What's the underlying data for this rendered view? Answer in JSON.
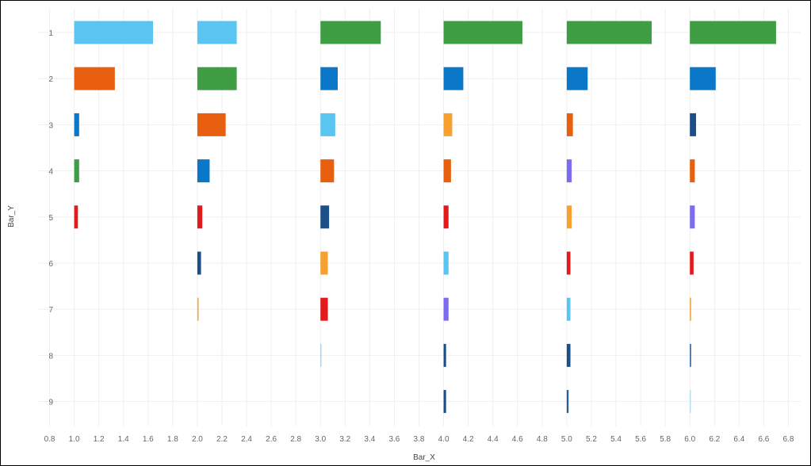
{
  "chart_data": {
    "type": "bar",
    "orientation": "horizontal",
    "layout": "small multiples: one group of horizontal bars per integer start value on Bar_X",
    "xlabel": "Bar_X",
    "ylabel": "Bar_Y",
    "xlim": [
      0.7,
      6.9
    ],
    "x_ticks": [
      "0.8",
      "1.0",
      "1.2",
      "1.4",
      "1.6",
      "1.8",
      "2.0",
      "2.2",
      "2.4",
      "2.6",
      "2.8",
      "3.0",
      "3.2",
      "3.4",
      "3.6",
      "3.8",
      "4.0",
      "4.2",
      "4.4",
      "4.6",
      "4.8",
      "5.0",
      "5.2",
      "5.4",
      "5.6",
      "5.8",
      "6.0",
      "6.2",
      "6.4",
      "6.6",
      "6.8"
    ],
    "y_categories": [
      "1",
      "2",
      "3",
      "4",
      "5",
      "6",
      "7",
      "8",
      "9"
    ],
    "grid": true,
    "legend": "none",
    "bars": [
      {
        "group": 1,
        "y": "1",
        "x0": 1.0,
        "x1": 1.64,
        "color": "#5bc5f2"
      },
      {
        "group": 1,
        "y": "2",
        "x0": 1.0,
        "x1": 1.33,
        "color": "#e8600f"
      },
      {
        "group": 1,
        "y": "3",
        "x0": 1.0,
        "x1": 1.04,
        "color": "#0a77c8"
      },
      {
        "group": 1,
        "y": "4",
        "x0": 1.0,
        "x1": 1.04,
        "color": "#3f9e44"
      },
      {
        "group": 1,
        "y": "5",
        "x0": 1.0,
        "x1": 1.03,
        "color": "#e31a1c"
      },
      {
        "group": 2,
        "y": "1",
        "x0": 2.0,
        "x1": 2.32,
        "color": "#5bc5f2"
      },
      {
        "group": 2,
        "y": "2",
        "x0": 2.0,
        "x1": 2.32,
        "color": "#3f9e44"
      },
      {
        "group": 2,
        "y": "3",
        "x0": 2.0,
        "x1": 2.23,
        "color": "#e8600f"
      },
      {
        "group": 2,
        "y": "4",
        "x0": 2.0,
        "x1": 2.1,
        "color": "#0a77c8"
      },
      {
        "group": 2,
        "y": "5",
        "x0": 2.0,
        "x1": 2.04,
        "color": "#e31a1c"
      },
      {
        "group": 2,
        "y": "6",
        "x0": 2.0,
        "x1": 2.03,
        "color": "#1c4e87"
      },
      {
        "group": 2,
        "y": "7",
        "x0": 2.0,
        "x1": 2.01,
        "color": "#f7a130"
      },
      {
        "group": 3,
        "y": "1",
        "x0": 3.0,
        "x1": 3.49,
        "color": "#3f9e44"
      },
      {
        "group": 3,
        "y": "2",
        "x0": 3.0,
        "x1": 3.14,
        "color": "#0a77c8"
      },
      {
        "group": 3,
        "y": "3",
        "x0": 3.0,
        "x1": 3.12,
        "color": "#5bc5f2"
      },
      {
        "group": 3,
        "y": "4",
        "x0": 3.0,
        "x1": 3.11,
        "color": "#e8600f"
      },
      {
        "group": 3,
        "y": "5",
        "x0": 3.0,
        "x1": 3.07,
        "color": "#1c4e87"
      },
      {
        "group": 3,
        "y": "6",
        "x0": 3.0,
        "x1": 3.06,
        "color": "#f7a130"
      },
      {
        "group": 3,
        "y": "7",
        "x0": 3.0,
        "x1": 3.06,
        "color": "#e31a1c"
      },
      {
        "group": 3,
        "y": "8",
        "x0": 3.0,
        "x1": 3.005,
        "color": "#a9c6e0"
      },
      {
        "group": 4,
        "y": "1",
        "x0": 4.0,
        "x1": 4.64,
        "color": "#3f9e44"
      },
      {
        "group": 4,
        "y": "2",
        "x0": 4.0,
        "x1": 4.16,
        "color": "#0a77c8"
      },
      {
        "group": 4,
        "y": "3",
        "x0": 4.0,
        "x1": 4.07,
        "color": "#f7a130"
      },
      {
        "group": 4,
        "y": "4",
        "x0": 4.0,
        "x1": 4.06,
        "color": "#e8600f"
      },
      {
        "group": 4,
        "y": "5",
        "x0": 4.0,
        "x1": 4.04,
        "color": "#e31a1c"
      },
      {
        "group": 4,
        "y": "6",
        "x0": 4.0,
        "x1": 4.04,
        "color": "#5bc5f2"
      },
      {
        "group": 4,
        "y": "7",
        "x0": 4.0,
        "x1": 4.04,
        "color": "#7b6cf0"
      },
      {
        "group": 4,
        "y": "8",
        "x0": 4.0,
        "x1": 4.02,
        "color": "#1c4e87"
      },
      {
        "group": 4,
        "y": "9",
        "x0": 4.0,
        "x1": 4.02,
        "color": "#1c4e87"
      },
      {
        "group": 5,
        "y": "1",
        "x0": 5.0,
        "x1": 5.69,
        "color": "#3f9e44"
      },
      {
        "group": 5,
        "y": "2",
        "x0": 5.0,
        "x1": 5.17,
        "color": "#0a77c8"
      },
      {
        "group": 5,
        "y": "3",
        "x0": 5.0,
        "x1": 5.05,
        "color": "#e8600f"
      },
      {
        "group": 5,
        "y": "4",
        "x0": 5.0,
        "x1": 5.04,
        "color": "#7b6cf0"
      },
      {
        "group": 5,
        "y": "5",
        "x0": 5.0,
        "x1": 5.04,
        "color": "#f7a130"
      },
      {
        "group": 5,
        "y": "6",
        "x0": 5.0,
        "x1": 5.03,
        "color": "#e31a1c"
      },
      {
        "group": 5,
        "y": "7",
        "x0": 5.0,
        "x1": 5.03,
        "color": "#5bc5f2"
      },
      {
        "group": 5,
        "y": "8",
        "x0": 5.0,
        "x1": 5.03,
        "color": "#1c4e87"
      },
      {
        "group": 5,
        "y": "9",
        "x0": 5.0,
        "x1": 5.015,
        "color": "#2a5d94"
      },
      {
        "group": 6,
        "y": "1",
        "x0": 6.0,
        "x1": 6.7,
        "color": "#3f9e44"
      },
      {
        "group": 6,
        "y": "2",
        "x0": 6.0,
        "x1": 6.21,
        "color": "#0a77c8"
      },
      {
        "group": 6,
        "y": "3",
        "x0": 6.0,
        "x1": 6.05,
        "color": "#1c4e87"
      },
      {
        "group": 6,
        "y": "4",
        "x0": 6.0,
        "x1": 6.04,
        "color": "#e8600f"
      },
      {
        "group": 6,
        "y": "5",
        "x0": 6.0,
        "x1": 6.04,
        "color": "#7b6cf0"
      },
      {
        "group": 6,
        "y": "6",
        "x0": 6.0,
        "x1": 6.03,
        "color": "#e31a1c"
      },
      {
        "group": 6,
        "y": "7",
        "x0": 6.0,
        "x1": 6.01,
        "color": "#f7a130"
      },
      {
        "group": 6,
        "y": "8",
        "x0": 6.0,
        "x1": 6.01,
        "color": "#2a5d94"
      },
      {
        "group": 6,
        "y": "9",
        "x0": 6.0,
        "x1": 6.005,
        "color": "#a8dcf5"
      }
    ]
  }
}
